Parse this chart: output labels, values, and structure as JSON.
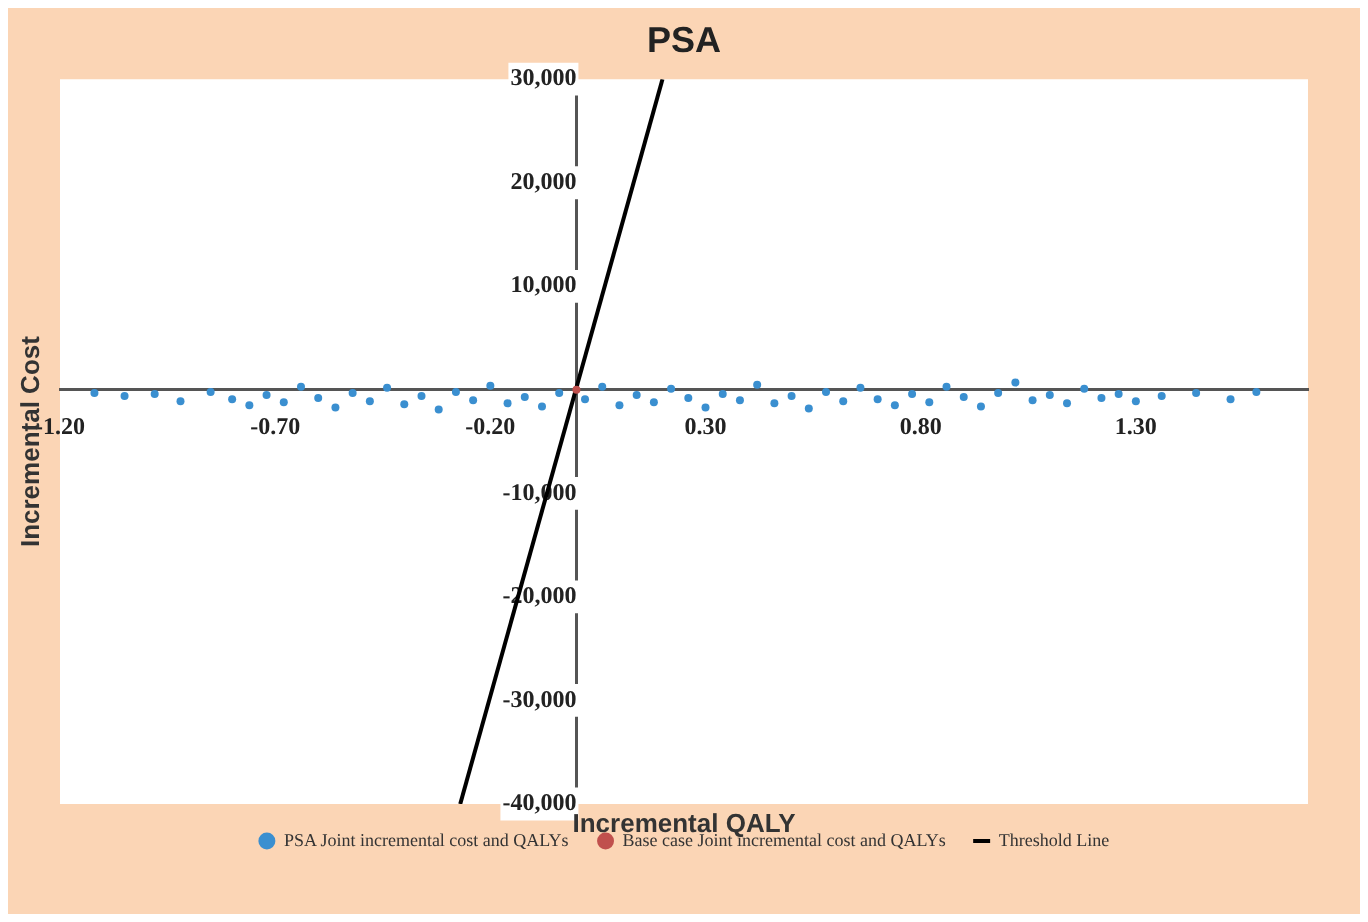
{
  "chart_data": {
    "type": "scatter",
    "title": "PSA",
    "xlabel": "Incremental QALY",
    "ylabel": "Incremental Cost",
    "xlim": [
      -1.2,
      1.7
    ],
    "ylim": [
      -40000,
      30000
    ],
    "xticks": [
      {
        "value": -1.2,
        "label": "-1.20"
      },
      {
        "value": -0.7,
        "label": "-0.70"
      },
      {
        "value": -0.2,
        "label": "-0.20"
      },
      {
        "value": 0.3,
        "label": "0.30"
      },
      {
        "value": 0.8,
        "label": "0.80"
      },
      {
        "value": 1.3,
        "label": "1.30"
      }
    ],
    "yticks": [
      {
        "value": -40000,
        "label": "-40,000"
      },
      {
        "value": -30000,
        "label": "-30,000"
      },
      {
        "value": -20000,
        "label": "-20,000"
      },
      {
        "value": -10000,
        "label": "-10,000"
      },
      {
        "value": 10000,
        "label": "10,000"
      },
      {
        "value": 20000,
        "label": "20,000"
      },
      {
        "value": 30000,
        "label": "30,000"
      }
    ],
    "grid": false,
    "legend": "bottom",
    "marker": "circle",
    "series": [
      {
        "name": "PSA Joint incremental cost and QALYs",
        "color": "#3a8fd0",
        "type": "scatter",
        "x": [
          -1.12,
          -1.05,
          -0.98,
          -0.92,
          -0.85,
          -0.8,
          -0.76,
          -0.72,
          -0.68,
          -0.64,
          -0.6,
          -0.56,
          -0.52,
          -0.48,
          -0.44,
          -0.4,
          -0.36,
          -0.32,
          -0.28,
          -0.24,
          -0.2,
          -0.16,
          -0.12,
          -0.08,
          -0.04,
          0.02,
          0.06,
          0.1,
          0.14,
          0.18,
          0.22,
          0.26,
          0.3,
          0.34,
          0.38,
          0.42,
          0.46,
          0.5,
          0.54,
          0.58,
          0.62,
          0.66,
          0.7,
          0.74,
          0.78,
          0.82,
          0.86,
          0.9,
          0.94,
          0.98,
          1.02,
          1.06,
          1.1,
          1.14,
          1.18,
          1.22,
          1.26,
          1.3,
          1.36,
          1.44,
          1.52,
          1.58
        ],
        "values": [
          -300,
          -600,
          -400,
          -1100,
          -200,
          -900,
          -1500,
          -500,
          -1200,
          300,
          -800,
          -1700,
          -300,
          -1100,
          200,
          -1400,
          -600,
          -1900,
          -200,
          -1000,
          400,
          -1300,
          -700,
          -1600,
          -300,
          -900,
          300,
          -1500,
          -500,
          -1200,
          100,
          -800,
          -1700,
          -400,
          -1000,
          500,
          -1300,
          -600,
          -1800,
          -200,
          -1100,
          200,
          -900,
          -1500,
          -400,
          -1200,
          300,
          -700,
          -1600,
          -300,
          700,
          -1000,
          -500,
          -1300,
          100,
          -800,
          -400,
          -1100,
          -600,
          -300,
          -900,
          -200
        ]
      },
      {
        "name": "Base case Joint incremental cost and QALYs",
        "color": "#c0504d",
        "type": "scatter",
        "x": [
          0
        ],
        "values": [
          0
        ]
      },
      {
        "name": "Threshold Line",
        "color": "#000000",
        "type": "line",
        "marker": "none",
        "x": [
          -0.27,
          0.2
        ],
        "values": [
          -40000,
          30000
        ]
      }
    ]
  }
}
